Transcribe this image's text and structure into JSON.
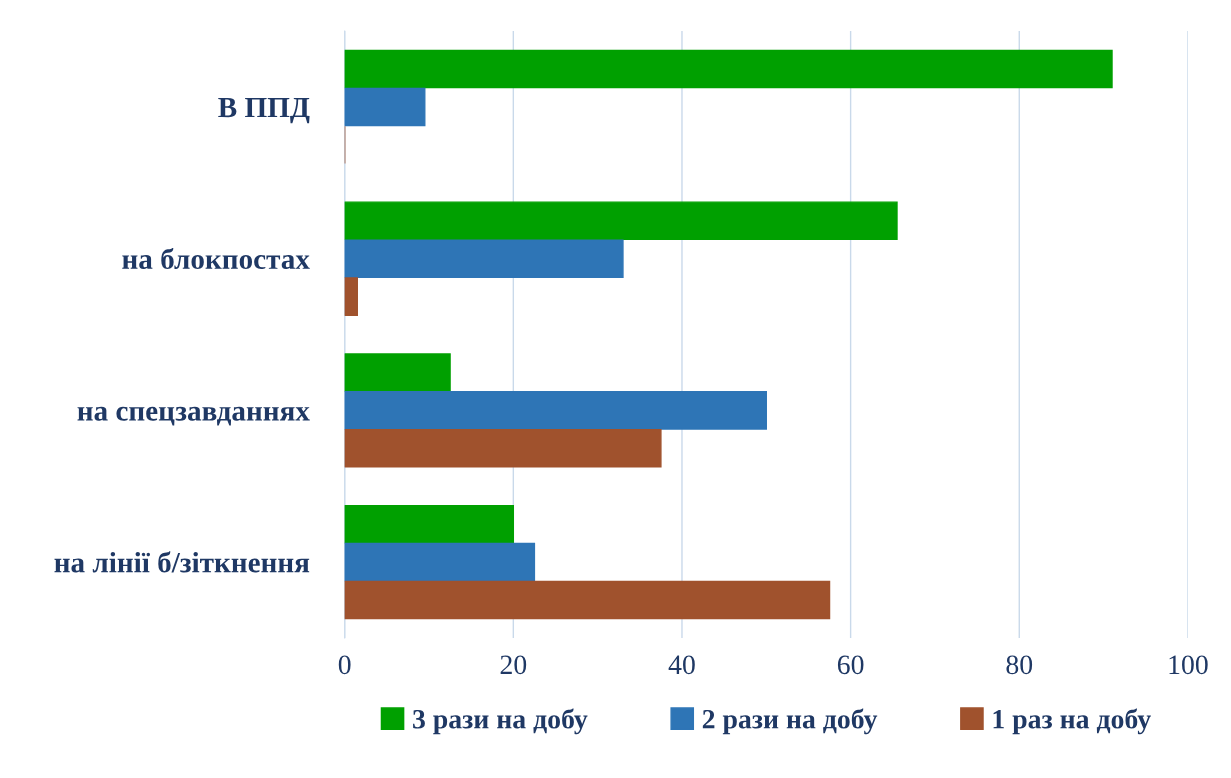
{
  "chart_data": {
    "type": "bar",
    "orientation": "horizontal",
    "categories": [
      "В ППД",
      "на блокпостах",
      "на спецзавданнях",
      "на лінії б/зіткнення"
    ],
    "series": [
      {
        "name": "3 рази на добу",
        "color": "#00a000",
        "values": [
          91,
          65.5,
          12.5,
          20
        ]
      },
      {
        "name": "2 рази на добу",
        "color": "#2e75b6",
        "values": [
          9.5,
          33,
          50,
          22.5
        ]
      },
      {
        "name": "1 раз на добу",
        "color": "#a0522d",
        "values": [
          0,
          1.5,
          37.5,
          57.5
        ]
      }
    ],
    "xlim": [
      0,
      100
    ],
    "xticks": [
      0,
      20,
      40,
      60,
      80,
      100
    ],
    "grid": "x",
    "legend": "bottom"
  }
}
